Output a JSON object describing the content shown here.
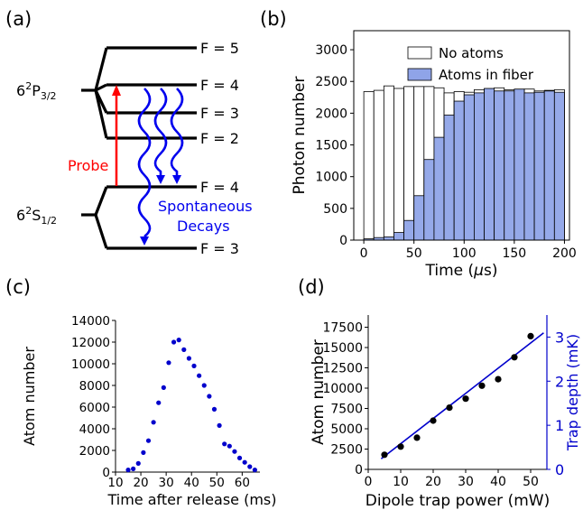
{
  "colors": {
    "no_atoms_fill": "#ffffff",
    "atoms_fill": "#8FA4E8",
    "bar_edge": "#000000",
    "probe": "#ff0000",
    "decay": "#0000ee",
    "scatter_c": "#0000cc",
    "scatter_d": "#000000",
    "fit_line": "#0000cc",
    "right_axis": "#0000cc"
  },
  "chart_data": [
    {
      "panel": "(a)",
      "type": "diagram",
      "upper_state": {
        "main": "6",
        "sup": "2",
        "sym": "P",
        "sub": "3/2"
      },
      "lower_state": {
        "main": "6",
        "sup": "2",
        "sym": "S",
        "sub": "1/2"
      },
      "upper_levels": [
        "F = 5",
        "F = 4",
        "F = 3",
        "F = 2"
      ],
      "lower_levels": [
        "F = 4",
        "F = 3"
      ],
      "probe_label": "Probe",
      "decay_label_1": "Spontaneous",
      "decay_label_2": "Decays"
    },
    {
      "panel": "(b)",
      "type": "bar",
      "xlabel_pre": "Time (",
      "xlabel_mu": "μ",
      "xlabel_post": "s)",
      "ylabel": "Photon number",
      "xlim": [
        -10,
        205
      ],
      "ylim": [
        0,
        3300
      ],
      "xticks": [
        0,
        50,
        100,
        150,
        200
      ],
      "yticks": [
        0,
        500,
        1000,
        1500,
        2000,
        2500,
        3000
      ],
      "bin_width": 10,
      "bin_starts": [
        0,
        10,
        20,
        30,
        40,
        50,
        60,
        70,
        80,
        90,
        100,
        110,
        120,
        130,
        140,
        150,
        160,
        170,
        180,
        190
      ],
      "legend_position": "upper right",
      "series": [
        {
          "name": "No atoms",
          "values": [
            2340,
            2360,
            2430,
            2390,
            2420,
            2420,
            2420,
            2400,
            2320,
            2340,
            2330,
            2370,
            2380,
            2400,
            2370,
            2360,
            2380,
            2350,
            2360,
            2370
          ]
        },
        {
          "name": "Atoms in fiber",
          "values": [
            20,
            40,
            50,
            120,
            310,
            700,
            1270,
            1620,
            1970,
            2190,
            2290,
            2320,
            2390,
            2350,
            2350,
            2380,
            2320,
            2330,
            2350,
            2330
          ]
        }
      ]
    },
    {
      "panel": "(c)",
      "type": "scatter",
      "xlabel": "Time after release (ms)",
      "ylabel": "Atom number",
      "xlim": [
        10,
        67
      ],
      "ylim": [
        0,
        14000
      ],
      "xticks": [
        10,
        20,
        30,
        40,
        50,
        60
      ],
      "yticks": [
        0,
        2000,
        4000,
        6000,
        8000,
        10000,
        12000,
        14000
      ],
      "x": [
        15,
        17,
        19,
        21,
        23,
        25,
        27,
        29,
        31,
        33,
        35,
        37,
        39,
        41,
        43,
        45,
        47,
        49,
        51,
        53,
        55,
        57,
        59,
        61,
        63,
        65
      ],
      "y": [
        200,
        300,
        800,
        1800,
        2900,
        4600,
        6400,
        7800,
        10100,
        12000,
        12200,
        11300,
        10500,
        9800,
        8900,
        8000,
        7000,
        5800,
        4300,
        2600,
        2400,
        1900,
        1300,
        900,
        500,
        200
      ]
    },
    {
      "panel": "(d)",
      "type": "scatter",
      "xlabel": "Dipole trap power (mW)",
      "ylabel": "Atom number",
      "y2label": "Trap depth (mK)",
      "xlim": [
        0,
        55
      ],
      "ylim": [
        0,
        19000
      ],
      "y2lim": [
        0,
        3.5
      ],
      "xticks": [
        0,
        10,
        20,
        30,
        40,
        50
      ],
      "yticks": [
        0,
        2500,
        5000,
        7500,
        10000,
        12500,
        15000,
        17500
      ],
      "y2ticks": [
        0,
        1,
        2,
        3
      ],
      "x": [
        5,
        10,
        15,
        20,
        25,
        30,
        35,
        40,
        45,
        50
      ],
      "y": [
        1800,
        2800,
        3900,
        6000,
        7600,
        8700,
        10300,
        11100,
        13800,
        16400
      ],
      "fit_line": {
        "x": [
          4,
          54
        ],
        "y": [
          1300,
          16800
        ]
      }
    }
  ],
  "panels": [
    {
      "label": "(a)"
    },
    {
      "label": "(b)"
    },
    {
      "label": "(c)"
    },
    {
      "label": "(d)"
    }
  ]
}
